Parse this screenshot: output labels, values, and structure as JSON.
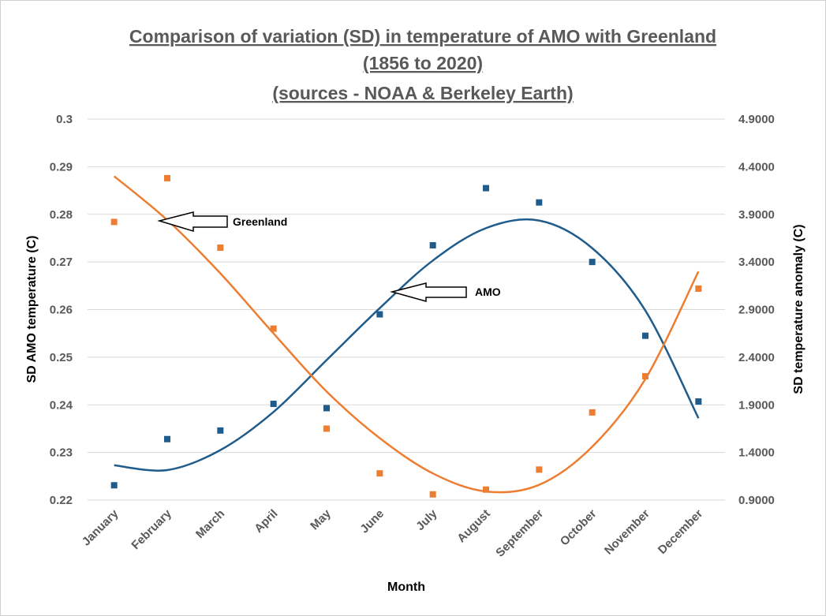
{
  "chart_data": {
    "type": "scatter",
    "title_lines": [
      "Comparison of variation (SD) in temperature of AMO with Greenland",
      "(1856 to 2020)",
      "(sources - NOAA & Berkeley Earth)"
    ],
    "xlabel": "Month",
    "ylabel_left": "SD AMO temperature (C)",
    "ylabel_right": "SD temperature anomaly (C)",
    "categories": [
      "January",
      "February",
      "March",
      "April",
      "May",
      "June",
      "July",
      "August",
      "September",
      "October",
      "November",
      "December"
    ],
    "y_left": {
      "min": 0.22,
      "max": 0.3,
      "ticks": [
        "0.22",
        "0.23",
        "0.24",
        "0.25",
        "0.26",
        "0.27",
        "0.28",
        "0.29",
        "0.3"
      ]
    },
    "y_right": {
      "min": 0.9,
      "max": 4.9,
      "ticks": [
        "0.9000",
        "1.4000",
        "1.9000",
        "2.4000",
        "2.9000",
        "3.4000",
        "3.9000",
        "4.4000",
        "4.9000"
      ]
    },
    "grid": true,
    "series": [
      {
        "name": "AMO",
        "axis": "left",
        "color": "#1F5C8B",
        "values": [
          0.2231,
          0.2328,
          0.2346,
          0.2402,
          0.2393,
          0.259,
          0.2735,
          0.2855,
          0.2825,
          0.27,
          0.2545,
          0.2407
        ],
        "trend": [
          0.2273,
          0.2263,
          0.2305,
          0.2385,
          0.2494,
          0.2603,
          0.2703,
          0.2771,
          0.2787,
          0.2729,
          0.2598,
          0.2372
        ]
      },
      {
        "name": "Greenland",
        "axis": "right",
        "color": "#ED7D31",
        "values": [
          3.82,
          4.28,
          3.55,
          2.7,
          1.65,
          1.18,
          0.96,
          1.01,
          1.22,
          1.82,
          2.2,
          3.12
        ],
        "trend": [
          4.3,
          3.84,
          3.28,
          2.65,
          2.04,
          1.55,
          1.18,
          0.99,
          1.06,
          1.46,
          2.17,
          3.3
        ]
      }
    ],
    "annotations": [
      {
        "label": "Greenland",
        "target_series": "Greenland",
        "target_month": "February"
      },
      {
        "label": "AMO",
        "target_series": "AMO",
        "target_month": "June"
      }
    ]
  }
}
